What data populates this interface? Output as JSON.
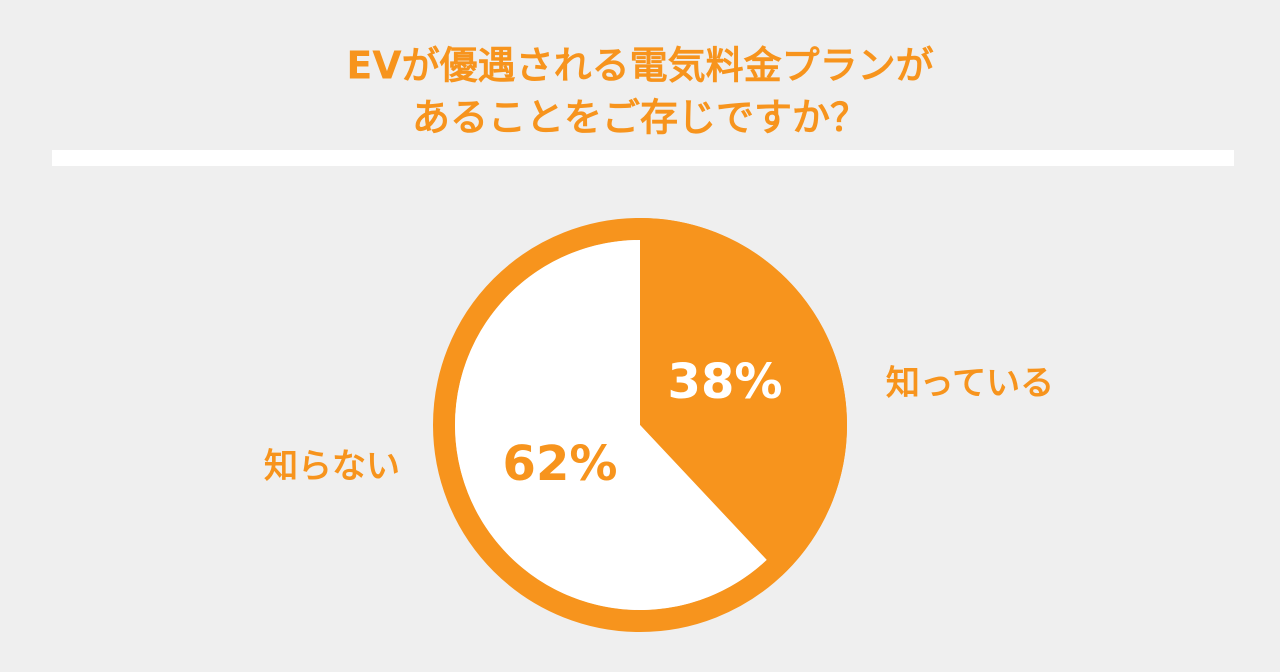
{
  "chart_data": {
    "type": "pie",
    "title": [
      "EVが優遇される電気料金プランが",
      "あることをご存じですか？"
    ],
    "categories": [
      "知っている",
      "知らない"
    ],
    "values": [
      38,
      62
    ],
    "value_labels": [
      "38%",
      "62%"
    ],
    "colors": [
      "#f7941d",
      "#ffffff"
    ],
    "accent": "#f7941d"
  }
}
